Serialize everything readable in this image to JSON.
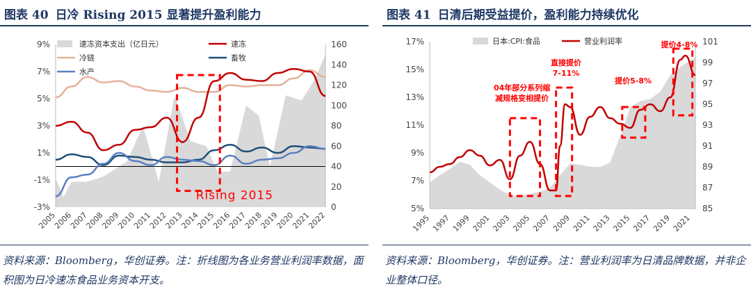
{
  "panels": [
    {
      "title_prefix": "图表 40",
      "title_text": "日冷 Rising 2015 显著提升盈利能力",
      "source": "资料来源：Bloomberg，华创证券。注：折线图为各业务营业利润率数据，面积图为日冷速冻食品业务资本开支。"
    },
    {
      "title_prefix": "图表 41",
      "title_text": "日清后期受益提价，盈利能力持续优化",
      "source": "资料来源：Bloomberg，华创证券。注：营业利润率为日清品牌数据，并非企业整体口径。"
    }
  ],
  "chart_data": [
    {
      "type": "line+area",
      "years": [
        "2005",
        "2006",
        "2007",
        "2008",
        "2009",
        "2010",
        "2011",
        "2012",
        "2013",
        "2014",
        "2015",
        "2016",
        "2017",
        "2018",
        "2019",
        "2020",
        "2021",
        "2022"
      ],
      "y_left": {
        "min": -3,
        "max": 9,
        "ticks": [
          "-3%",
          "-1%",
          "1%",
          "3%",
          "5%",
          "7%",
          "9%"
        ]
      },
      "y_right": {
        "min": 0,
        "max": 160,
        "ticks": [
          "0",
          "20",
          "40",
          "60",
          "80",
          "100",
          "120",
          "140",
          "160"
        ]
      },
      "legend": [
        "速冻资本支出（亿日元）",
        "速冻",
        "冷链",
        "畜牧",
        "水产"
      ],
      "colors": {
        "area": "#d9d9d9",
        "frozen": "#c00000",
        "cold": "#e6b19a",
        "livestock": "#1f4e79",
        "seafood": "#5b7fc0",
        "highlight": "#ff0000"
      },
      "area_series": {
        "name": "速冻资本支出（亿日元）",
        "values": [
          28,
          10,
          25,
          25,
          30,
          45,
          80,
          25,
          110,
          65,
          60,
          35,
          35,
          100,
          90,
          40,
          110,
          105,
          125,
          150
        ]
      },
      "area_x": [
        2005,
        2005.5,
        2006,
        2007,
        2008,
        2009.5,
        2010.5,
        2011.5,
        2012.5,
        2013.5,
        2014.5,
        2015.2,
        2016,
        2017,
        2017.8,
        2018.5,
        2019.5,
        2020.5,
        2021.3,
        2022
      ],
      "series": [
        {
          "name": "冷链",
          "values": [
            5.1,
            5.9,
            6.6,
            6.2,
            6.3,
            5.9,
            5.6,
            5.5,
            5.8,
            5.5,
            5.5,
            6.0,
            5.9,
            6.0,
            6.0,
            6.5,
            7.1,
            6.6
          ]
        },
        {
          "name": "速冻",
          "values": [
            3.0,
            3.3,
            2.5,
            1.2,
            1.6,
            2.7,
            2.9,
            3.6,
            1.8,
            3.6,
            6.3,
            6.9,
            6.4,
            6.3,
            6.9,
            7.2,
            7.0,
            5.2
          ]
        },
        {
          "name": "畜牧",
          "values": [
            0.5,
            0.9,
            0.7,
            0.1,
            0.8,
            0.7,
            0.5,
            0.3,
            0.3,
            0.5,
            1.2,
            1.6,
            1.1,
            1.4,
            1.0,
            1.5,
            1.4,
            1.3
          ]
        },
        {
          "name": "水产",
          "values": [
            -2.2,
            -0.8,
            -0.6,
            0.2,
            1.0,
            0.4,
            0.1,
            0.7,
            0.5,
            0.4,
            0.1,
            0.8,
            0.2,
            0.5,
            0.6,
            1.0,
            1.5,
            1.3
          ]
        }
      ],
      "annotation": "Rising 2015",
      "highlight_years": [
        2013,
        2015
      ]
    },
    {
      "type": "line+area",
      "years": [
        "1995",
        "1997",
        "1999",
        "2001",
        "2003",
        "2005",
        "2007",
        "2009",
        "2011",
        "2013",
        "2015",
        "2017",
        "2019",
        "2021"
      ],
      "y_left": {
        "min": 5,
        "max": 17,
        "ticks": [
          "5%",
          "7%",
          "9%",
          "11%",
          "13%",
          "15%",
          "17%"
        ]
      },
      "y_right": {
        "min": 85,
        "max": 101,
        "ticks": [
          "85",
          "87",
          "89",
          "91",
          "93",
          "95",
          "97",
          "99",
          "101"
        ]
      },
      "legend": [
        "日本:CPI:食品",
        "营业利润率"
      ],
      "colors": {
        "area": "#d9d9d9",
        "margin": "#c00000",
        "highlight": "#ff0000",
        "note": "#ff0000"
      },
      "area_series": {
        "name": "日本:CPI:食品",
        "x": [
          1995,
          1996,
          1997,
          1998,
          1999,
          2000,
          2001,
          2002,
          2003,
          2004,
          2005,
          2006,
          2007,
          2008,
          2009,
          2010,
          2011,
          2012,
          2013,
          2014,
          2015,
          2016,
          2017,
          2018,
          2019,
          2020,
          2021,
          2021.5
        ],
        "values": [
          87.5,
          88.2,
          88.8,
          89.5,
          89.2,
          88.2,
          87.5,
          86.8,
          86.3,
          86.2,
          86.4,
          86.6,
          87.0,
          88.2,
          89.3,
          89.2,
          89.0,
          89.0,
          89.4,
          92.0,
          94.7,
          95.3,
          95.5,
          96.2,
          97.8,
          98.6,
          99.2,
          99.5
        ]
      },
      "series": [
        {
          "name": "营业利润率",
          "x": [
            1995,
            1996,
            1997,
            1998,
            1999,
            2000,
            2001,
            2002,
            2003,
            2004,
            2005,
            2006,
            2007,
            2007.6,
            2008,
            2008.5,
            2009,
            2010,
            2011,
            2012,
            2013,
            2014,
            2015,
            2016,
            2017,
            2018,
            2019,
            2020,
            2020.5,
            2021.5
          ],
          "values": [
            7.6,
            8.0,
            8.2,
            8.7,
            9.2,
            8.8,
            8.1,
            8.5,
            7.1,
            8.8,
            9.8,
            8.2,
            6.3,
            6.3,
            9.5,
            12.5,
            12.3,
            10.3,
            11.6,
            12.3,
            11.5,
            11.1,
            10.8,
            12.1,
            12.5,
            12.0,
            13.0,
            15.7,
            16.0,
            14.6
          ]
        }
      ],
      "annotations": [
        "04年部分系列缩减规格变相提价",
        "直接提价 7-11%",
        "提价5-8%",
        "提价4-8%"
      ],
      "highlight_ranges": [
        [
          2003,
          2006
        ],
        [
          2007.6,
          2009.2
        ],
        [
          2014.2,
          2016.5
        ],
        [
          2019.3,
          2021.2
        ]
      ]
    }
  ]
}
